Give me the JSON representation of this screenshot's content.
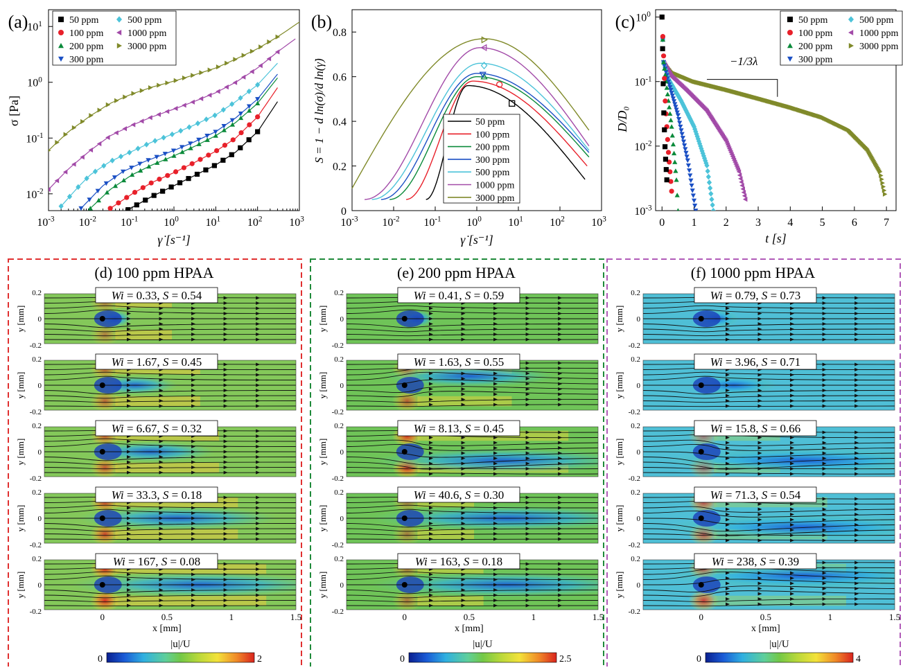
{
  "chart_data": [
    {
      "panel_label": "(a)",
      "type": "scatter",
      "xlabel": "γ̇ [s⁻¹]",
      "ylabel": "σ [Pa]",
      "xscale": "log",
      "yscale": "log",
      "xlim": [
        0.001,
        1000
      ],
      "ylim": [
        0.005,
        20
      ],
      "x_ticks": [
        "10⁻³",
        "10⁻²",
        "10⁻¹",
        "10⁰",
        "10¹",
        "10²",
        "10³"
      ],
      "y_ticks": [
        "10⁻²",
        "10⁻¹",
        "10⁰",
        "10¹"
      ],
      "legend": [
        "50 ppm",
        "100 ppm",
        "200 ppm",
        "300 ppm",
        "500 ppm",
        "1000 ppm",
        "3000 ppm"
      ],
      "series": [
        {
          "name": "50 ppm",
          "color": "#000000",
          "marker": "square",
          "fit_x": [
            0.08,
            0.3,
            1,
            3,
            10,
            30,
            100,
            300
          ],
          "fit_y": [
            0.0052,
            0.009,
            0.014,
            0.021,
            0.033,
            0.056,
            0.13,
            0.45
          ]
        },
        {
          "name": "100 ppm",
          "color": "#e8202a",
          "marker": "circle",
          "fit_x": [
            0.03,
            0.1,
            0.3,
            1,
            3,
            10,
            30,
            100,
            300
          ],
          "fit_y": [
            0.0055,
            0.01,
            0.016,
            0.024,
            0.036,
            0.058,
            0.1,
            0.24,
            0.8
          ]
        },
        {
          "name": "200 ppm",
          "color": "#0a8a3a",
          "marker": "triangle-up",
          "fit_x": [
            0.01,
            0.03,
            0.1,
            0.3,
            1,
            3,
            10,
            30,
            100,
            300
          ],
          "fit_y": [
            0.0055,
            0.012,
            0.022,
            0.033,
            0.048,
            0.07,
            0.11,
            0.19,
            0.42,
            1.2
          ]
        },
        {
          "name": "300 ppm",
          "color": "#1a4fc4",
          "marker": "triangle-down",
          "fit_x": [
            0.006,
            0.02,
            0.06,
            0.2,
            1,
            3,
            10,
            30,
            100,
            300
          ],
          "fit_y": [
            0.0055,
            0.014,
            0.025,
            0.038,
            0.06,
            0.085,
            0.13,
            0.23,
            0.5,
            1.4
          ]
        },
        {
          "name": "500 ppm",
          "color": "#4cc3d9",
          "marker": "diamond",
          "fit_x": [
            0.002,
            0.005,
            0.01,
            0.03,
            0.1,
            0.3,
            1,
            3,
            10,
            30,
            100,
            300
          ],
          "fit_y": [
            0.006,
            0.013,
            0.022,
            0.038,
            0.058,
            0.085,
            0.12,
            0.17,
            0.26,
            0.45,
            0.9,
            2.2
          ]
        },
        {
          "name": "1000 ppm",
          "color": "#a24aa8",
          "marker": "triangle-left",
          "fit_x": [
            0.001,
            0.003,
            0.01,
            0.03,
            0.1,
            0.3,
            1,
            3,
            10,
            30,
            100,
            300,
            800
          ],
          "fit_y": [
            0.012,
            0.028,
            0.06,
            0.11,
            0.17,
            0.24,
            0.33,
            0.45,
            0.65,
            1.0,
            1.8,
            3.5,
            6
          ]
        },
        {
          "name": "3000 ppm",
          "color": "#808a2a",
          "marker": "triangle-right",
          "fit_x": [
            0.001,
            0.003,
            0.01,
            0.03,
            0.1,
            0.3,
            1,
            3,
            10,
            30,
            100,
            300,
            1000
          ],
          "fit_y": [
            0.06,
            0.13,
            0.25,
            0.42,
            0.62,
            0.82,
            1.05,
            1.35,
            1.8,
            2.6,
            4.0,
            6.5,
            12
          ]
        }
      ]
    },
    {
      "panel_label": "(b)",
      "type": "line",
      "xlabel": "γ̇ [s⁻¹]",
      "ylabel": "S = 1 − d ln(σ)/d ln(γ̇)",
      "xscale": "log",
      "xlim": [
        0.001,
        1000
      ],
      "ylim": [
        0,
        0.9
      ],
      "x_ticks": [
        "10⁻³",
        "10⁻²",
        "10⁻¹",
        "10⁰",
        "10¹",
        "10²",
        "10³"
      ],
      "y_ticks": [
        "0",
        "0.2",
        "0.4",
        "0.6",
        "0.8"
      ],
      "legend": [
        "50 ppm",
        "100 ppm",
        "200 ppm",
        "300 ppm",
        "500 ppm",
        "1000 ppm",
        "3000 ppm"
      ],
      "series": [
        {
          "name": "50 ppm",
          "color": "#000000",
          "peak_S": 0.56,
          "peak_x": 0.6,
          "start_x": 0.06,
          "end_x": 400,
          "end_S": 0.14,
          "marker_x": 7,
          "marker_S": 0.48
        },
        {
          "name": "100 ppm",
          "color": "#e8202a",
          "peak_S": 0.58,
          "peak_x": 0.8,
          "start_x": 0.02,
          "end_x": 450,
          "end_S": 0.2,
          "marker_x": 3.5,
          "marker_S": 0.565
        },
        {
          "name": "200 ppm",
          "color": "#0a8a3a",
          "peak_S": 0.6,
          "peak_x": 1.0,
          "start_x": 0.008,
          "end_x": 500,
          "end_S": 0.24,
          "marker_x": 1.5,
          "marker_S": 0.6
        },
        {
          "name": "300 ppm",
          "color": "#1a4fc4",
          "peak_S": 0.615,
          "peak_x": 1.0,
          "start_x": 0.005,
          "end_x": 500,
          "end_S": 0.26,
          "marker_x": 1.4,
          "marker_S": 0.61
        },
        {
          "name": "500 ppm",
          "color": "#4cc3d9",
          "peak_S": 0.66,
          "peak_x": 1.2,
          "start_x": 0.003,
          "end_x": 500,
          "end_S": 0.27,
          "marker_x": 1.5,
          "marker_S": 0.65
        },
        {
          "name": "1000 ppm",
          "color": "#a24aa8",
          "peak_S": 0.73,
          "peak_x": 1.2,
          "start_x": 0.002,
          "end_x": 500,
          "end_S": 0.29,
          "marker_x": 1.5,
          "marker_S": 0.73
        },
        {
          "name": "3000 ppm",
          "color": "#808a2a",
          "peak_S": 0.77,
          "peak_x": 1.5,
          "start_x": 0.001,
          "end_x": 500,
          "end_S": 0.36,
          "marker_x": 1.5,
          "marker_S": 0.765
        }
      ]
    },
    {
      "panel_label": "(c)",
      "type": "scatter",
      "xlabel": "t [s]",
      "ylabel": "D/D₀",
      "yscale": "log",
      "xlim": [
        -0.2,
        7.3
      ],
      "ylim": [
        0.001,
        1.3
      ],
      "x_ticks": [
        "0",
        "1",
        "2",
        "3",
        "4",
        "5",
        "6",
        "7"
      ],
      "y_ticks": [
        "10⁻³",
        "10⁻²",
        "10⁻¹",
        "10⁰"
      ],
      "annotation": "−1/3λ",
      "legend": [
        "50 ppm",
        "100 ppm",
        "200 ppm",
        "300 ppm",
        "500 ppm",
        "1000 ppm",
        "3000 ppm"
      ],
      "series": [
        {
          "name": "50 ppm",
          "color": "#000000",
          "marker": "square",
          "t": [
            0,
            0.02,
            0.05,
            0.1,
            0.15
          ],
          "y": [
            1,
            0.3,
            0.04,
            0.008,
            0.003
          ]
        },
        {
          "name": "100 ppm",
          "color": "#e8202a",
          "marker": "circle",
          "t": [
            0,
            0.05,
            0.1,
            0.2,
            0.3
          ],
          "y": [
            1,
            0.25,
            0.05,
            0.008,
            0.002
          ]
        },
        {
          "name": "200 ppm",
          "color": "#0a8a3a",
          "marker": "triangle-up",
          "t": [
            0,
            0.05,
            0.15,
            0.3,
            0.45,
            0.5
          ],
          "y": [
            1,
            0.2,
            0.08,
            0.02,
            0.003,
            0.001
          ]
        },
        {
          "name": "300 ppm",
          "color": "#1a4fc4",
          "marker": "triangle-down",
          "t": [
            0,
            0.05,
            0.2,
            0.5,
            0.8,
            1.05
          ],
          "y": [
            1,
            0.2,
            0.1,
            0.03,
            0.006,
            0.001
          ]
        },
        {
          "name": "500 ppm",
          "color": "#4cc3d9",
          "marker": "diamond",
          "t": [
            0,
            0.05,
            0.2,
            0.6,
            1.0,
            1.4,
            1.6
          ],
          "y": [
            1,
            0.2,
            0.11,
            0.05,
            0.02,
            0.005,
            0.001
          ]
        },
        {
          "name": "1000 ppm",
          "color": "#a24aa8",
          "marker": "triangle-left",
          "t": [
            0,
            0.05,
            0.3,
            0.8,
            1.4,
            2.0,
            2.4,
            2.6
          ],
          "y": [
            1,
            0.2,
            0.12,
            0.07,
            0.035,
            0.012,
            0.004,
            0.0015
          ]
        },
        {
          "name": "3000 ppm",
          "color": "#808a2a",
          "marker": "triangle-right",
          "t": [
            0,
            0.05,
            0.3,
            1,
            2,
            3,
            4,
            5,
            5.8,
            6.4,
            6.8,
            6.95
          ],
          "y": [
            1,
            0.2,
            0.14,
            0.1,
            0.075,
            0.055,
            0.04,
            0.028,
            0.018,
            0.009,
            0.004,
            0.0018
          ]
        }
      ]
    },
    {
      "panel_label": "(d)",
      "type": "heatmap",
      "panel_title": "100 ppm HPAA",
      "frame_color": "#e03030",
      "colorbar": {
        "label": "|u|/U",
        "min": "0",
        "max": "2"
      },
      "xlabel": "x [mm]",
      "ylabel": "y [mm]",
      "x_ticks": [
        "0",
        "0.5",
        "1",
        "1.5"
      ],
      "y_ticks": [
        "0.2",
        "0",
        "-0.2"
      ],
      "rows": [
        {
          "wi": "0.33",
          "s": "0.54",
          "wake_len": 0.12,
          "wake_dir": 0,
          "band": 0.3
        },
        {
          "wi": "1.67",
          "s": "0.45",
          "wake_len": 0.3,
          "wake_dir": 0,
          "band": 0.45
        },
        {
          "wi": "6.67",
          "s": "0.32",
          "wake_len": 0.45,
          "wake_dir": 0,
          "band": 0.55
        },
        {
          "wi": "33.3",
          "s": "0.18",
          "wake_len": 0.7,
          "wake_dir": 0,
          "band": 0.65
        },
        {
          "wi": "167",
          "s": "0.08",
          "wake_len": 0.9,
          "wake_dir": 0,
          "band": 0.8
        }
      ]
    },
    {
      "panel_label": "(e)",
      "type": "heatmap",
      "panel_title": "200 ppm HPAA",
      "frame_color": "#1f8a3a",
      "colorbar": {
        "label": "|u|/U",
        "min": "0",
        "max": "2.5"
      },
      "xlabel": "x [mm]",
      "ylabel": "y [mm]",
      "x_ticks": [
        "0",
        "0.5",
        "1",
        "1.5"
      ],
      "y_ticks": [
        "0.2",
        "0",
        "-0.2"
      ],
      "rows": [
        {
          "wi": "0.41",
          "s": "0.59",
          "wake_len": 0.12,
          "wake_dir": 0,
          "band": 0.1
        },
        {
          "wi": "1.63",
          "s": "0.55",
          "wake_len": 0.6,
          "wake_dir": -1,
          "band": 0.5
        },
        {
          "wi": "8.13",
          "s": "0.45",
          "wake_len": 0.9,
          "wake_dir": 1,
          "band": 0.8
        },
        {
          "wi": "40.6",
          "s": "0.30",
          "wake_len": 0.95,
          "wake_dir": 0,
          "band": 0.3
        },
        {
          "wi": "163",
          "s": "0.18",
          "wake_len": 0.95,
          "wake_dir": 0,
          "band": 0.35
        }
      ]
    },
    {
      "panel_label": "(f)",
      "type": "heatmap",
      "panel_title": "1000 ppm HPAA",
      "frame_color": "#b05ab8",
      "colorbar": {
        "label": "|u|/U",
        "min": "0",
        "max": "4"
      },
      "xlabel": "x [mm]",
      "ylabel": "y [mm]",
      "x_ticks": [
        "0",
        "0.5",
        "1",
        "1.5"
      ],
      "y_ticks": [
        "0.2",
        "0",
        "-0.2"
      ],
      "rows": [
        {
          "wi": "0.79",
          "s": "0.73",
          "wake_len": 0.15,
          "wake_dir": 0,
          "band": 0.1
        },
        {
          "wi": "3.96",
          "s": "0.71",
          "wake_len": 0.3,
          "wake_dir": 0,
          "band": 0.1
        },
        {
          "wi": "15.8",
          "s": "0.66",
          "wake_len": 0.95,
          "wake_dir": 1,
          "band": 0.35
        },
        {
          "wi": "71.3",
          "s": "0.54",
          "wake_len": 0.95,
          "wake_dir": 1,
          "band": 0.6
        },
        {
          "wi": "238",
          "s": "0.39",
          "wake_len": 0.95,
          "wake_dir": -1,
          "band": 0.7
        }
      ]
    }
  ]
}
